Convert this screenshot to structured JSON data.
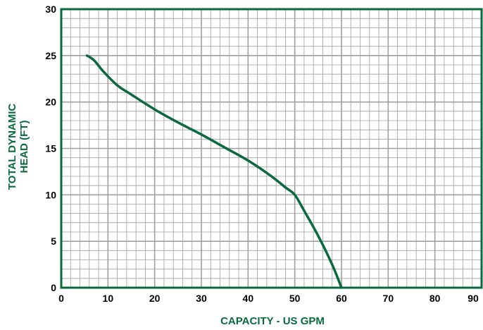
{
  "chart_data": {
    "type": "line",
    "title": "",
    "xlabel": "CAPACITY - US GPM",
    "ylabel_lines": [
      "TOTAL DYNAMIC",
      "HEAD (FT)"
    ],
    "xlim": [
      0,
      90
    ],
    "ylim": [
      0,
      30
    ],
    "x_ticks": [
      "0",
      "10",
      "20",
      "30",
      "40",
      "50",
      "60",
      "70",
      "80",
      "90"
    ],
    "y_ticks": [
      "0",
      "5",
      "10",
      "15",
      "20",
      "25",
      "30"
    ],
    "grid": true,
    "series": [
      {
        "x": [
          5.5,
          7,
          9,
          12,
          15,
          20,
          25,
          30,
          35,
          40,
          45,
          48,
          50,
          52,
          55,
          58,
          60
        ],
        "y": [
          25,
          24.5,
          23.3,
          21.8,
          20.8,
          19.2,
          17.8,
          16.5,
          15.1,
          13.7,
          12,
          10.8,
          10,
          8.3,
          5.6,
          2.5,
          0
        ]
      }
    ],
    "colors": {
      "accent": "#0a6a3e",
      "grid": "#a0a0a0",
      "tick_text": "#000000"
    }
  }
}
